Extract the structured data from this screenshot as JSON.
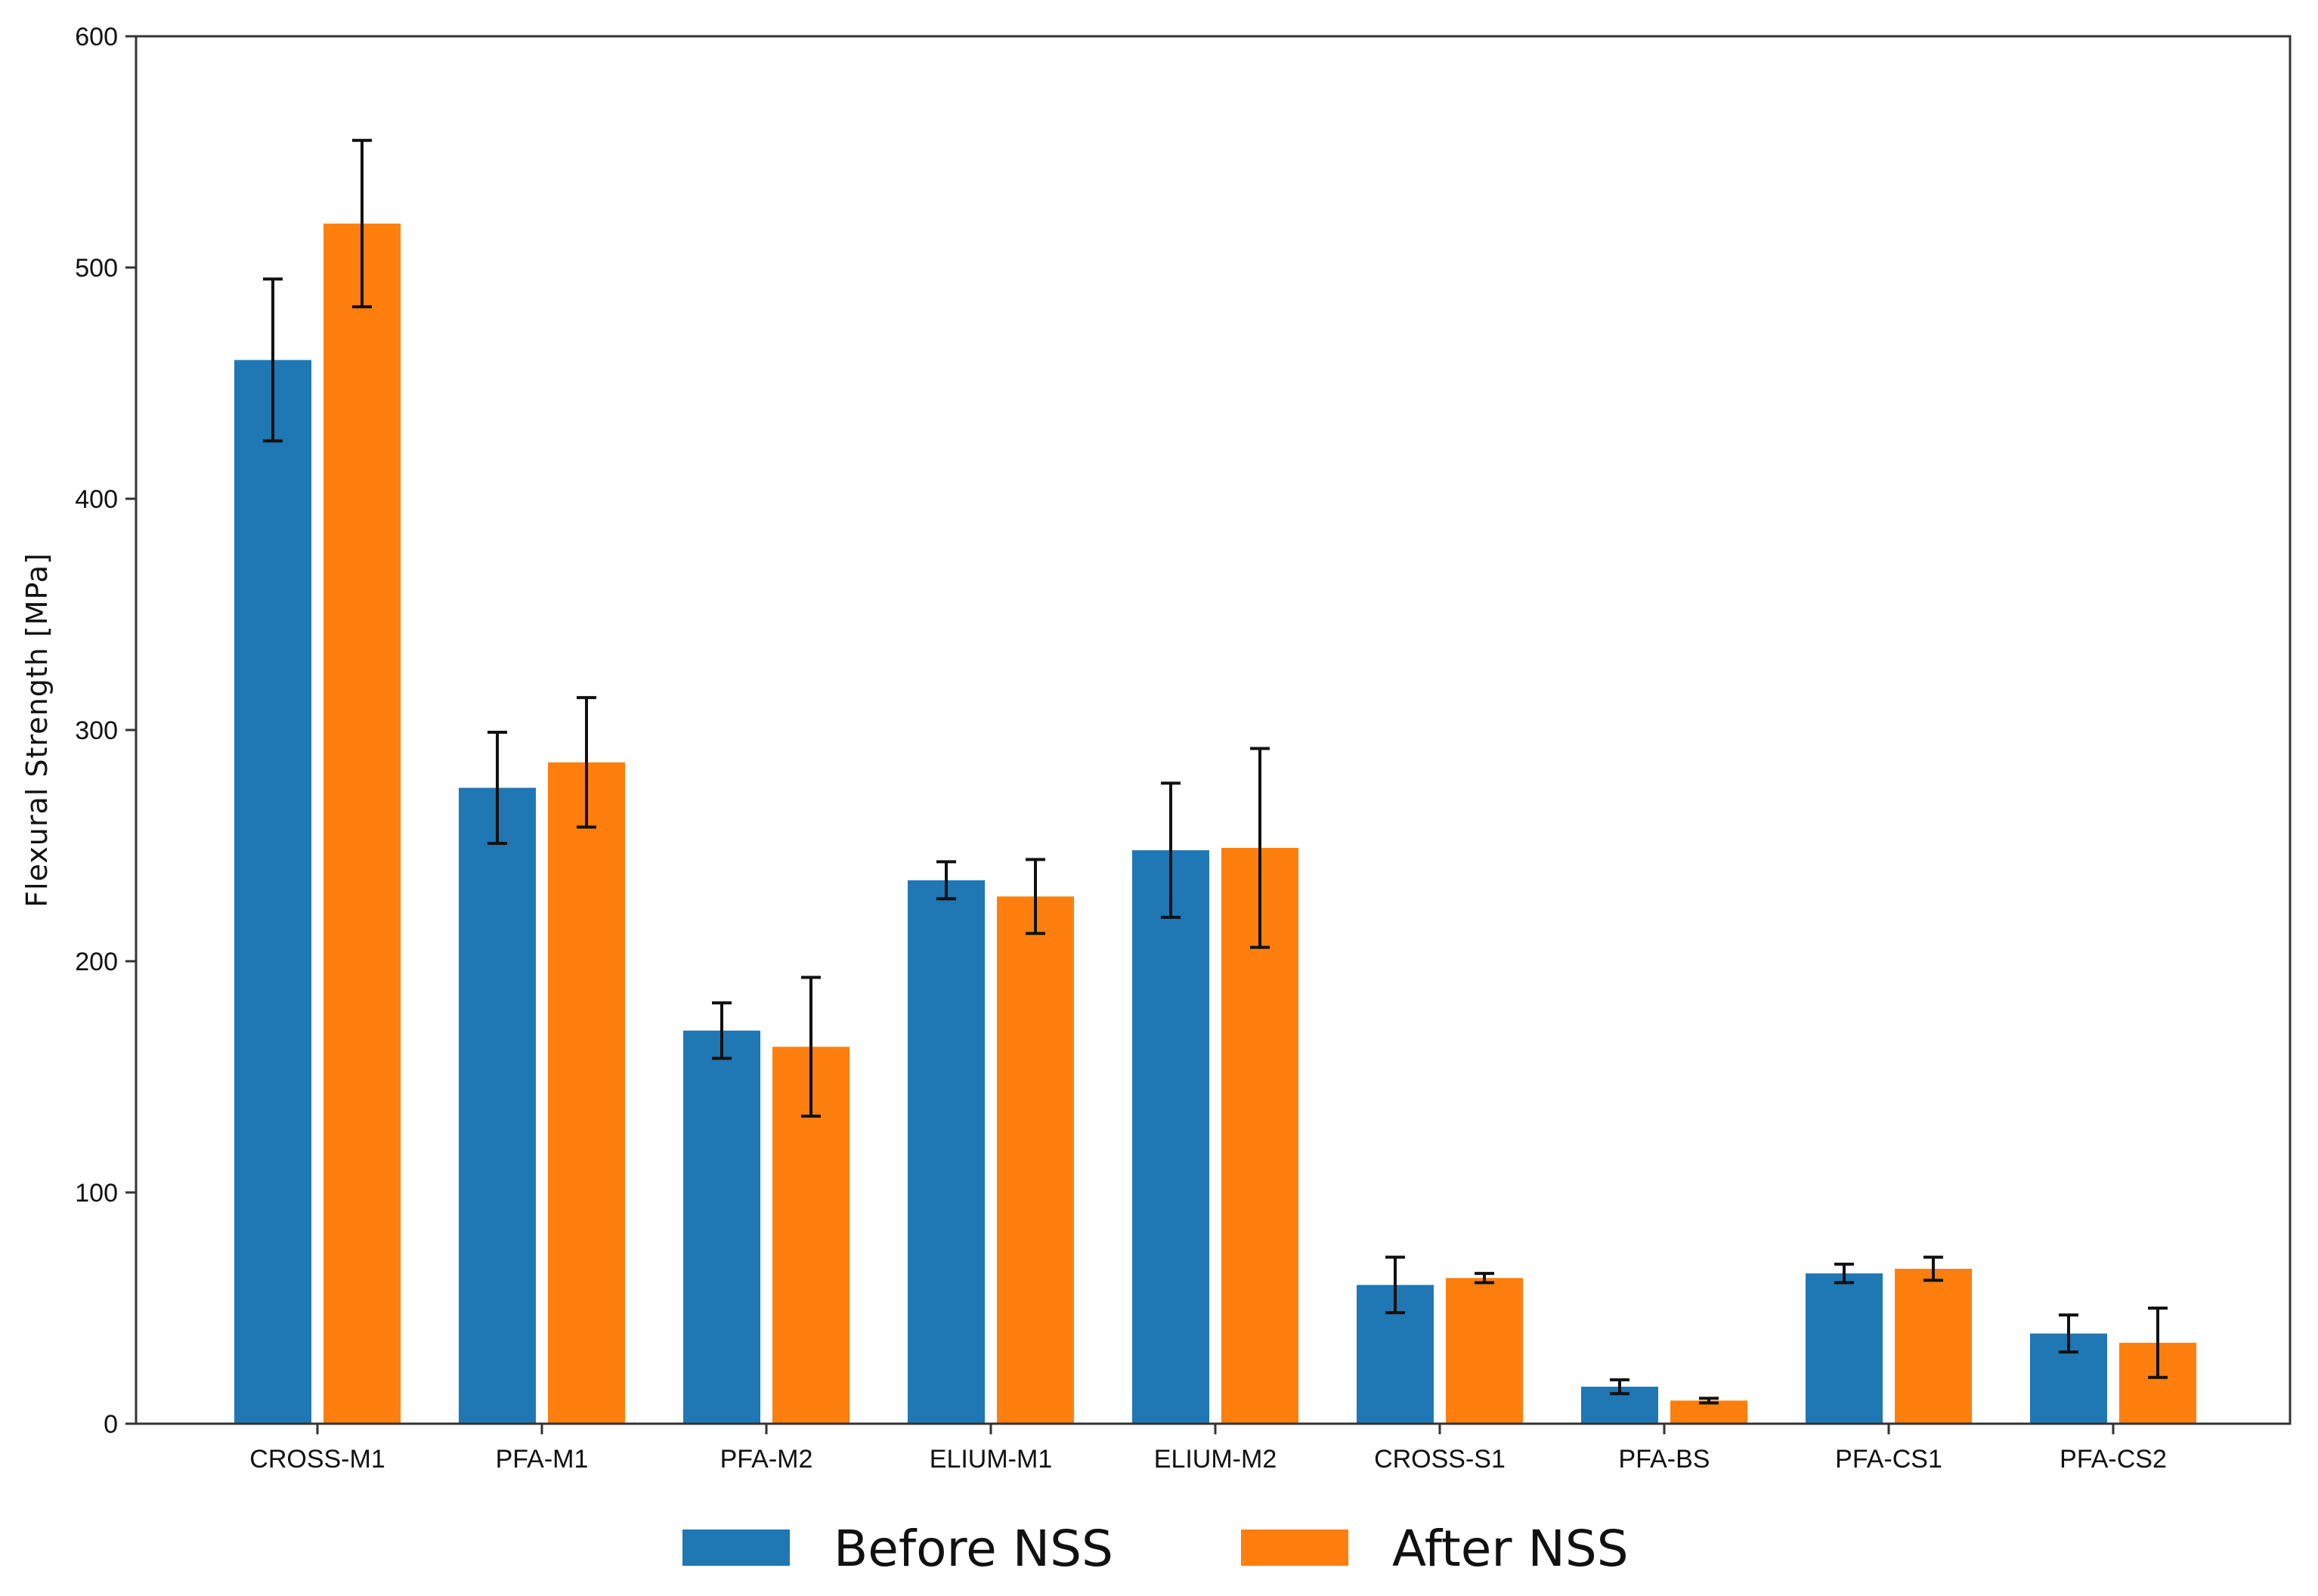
{
  "chart_data": {
    "type": "bar",
    "title": "",
    "xlabel": "",
    "ylabel": "Flexural Strength [MPa]",
    "ylim": [
      0,
      600
    ],
    "yticks": [
      0,
      100,
      200,
      300,
      400,
      500,
      600
    ],
    "grid": false,
    "legend_position": "bottom-center",
    "categories": [
      "CROSS-M1",
      "PFA-M1",
      "PFA-M2",
      "ELIUM-M1",
      "ELIUM-M2",
      "CROSS-S1",
      "PFA-BS",
      "PFA-CS1",
      "PFA-CS2"
    ],
    "series": [
      {
        "name": "Before NSS",
        "color": "#1f77b4",
        "values": [
          460,
          275,
          170,
          235,
          248,
          60,
          16,
          65,
          39
        ],
        "errors": [
          35,
          24,
          12,
          8,
          29,
          12,
          3,
          4,
          8
        ]
      },
      {
        "name": "After NSS",
        "color": "#ff7f0e",
        "values": [
          519,
          286,
          163,
          228,
          249,
          63,
          10,
          67,
          35
        ],
        "errors": [
          36,
          28,
          30,
          16,
          43,
          2,
          1,
          5,
          15
        ]
      }
    ]
  }
}
